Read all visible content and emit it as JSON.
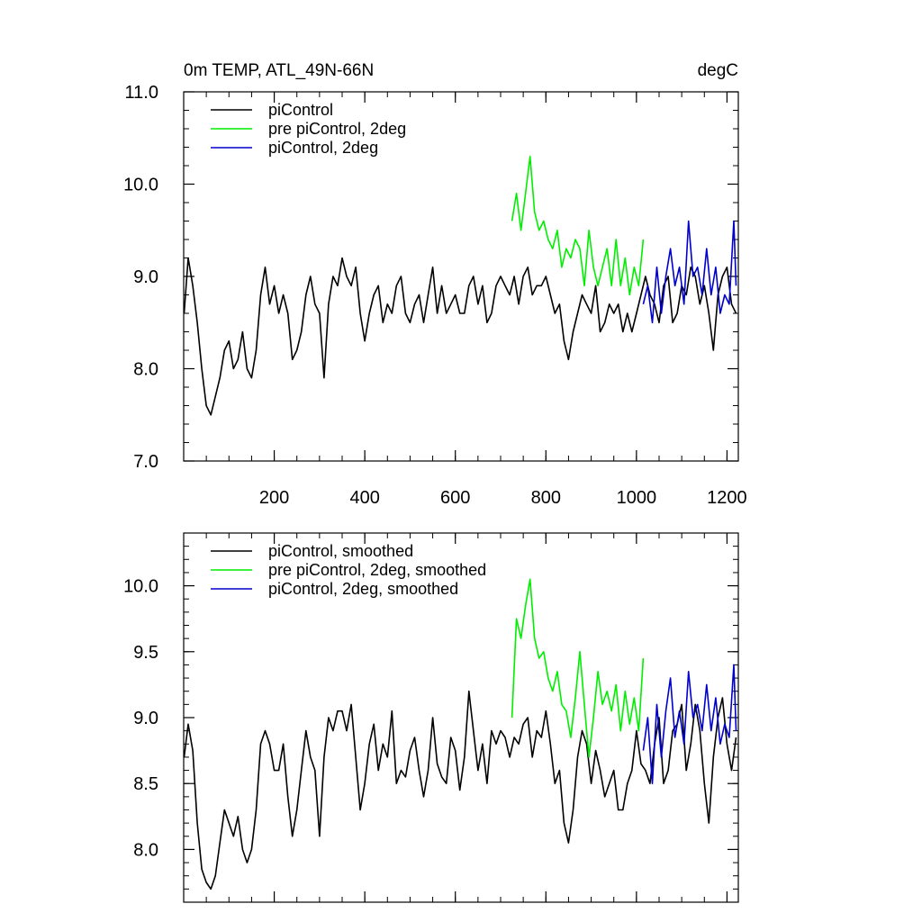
{
  "figure": {
    "title_left": "0m TEMP, ATL_49N-66N",
    "title_right": "degC"
  },
  "chart_data": [
    {
      "type": "line",
      "xlim": [
        0,
        1225
      ],
      "ylim": [
        7.0,
        11.0
      ],
      "x_ticks": [
        200,
        400,
        600,
        800,
        1000,
        1200
      ],
      "x_tick_labels": [
        "200",
        "400",
        "600",
        "800",
        "1000",
        "1200"
      ],
      "y_ticks": [
        7.0,
        8.0,
        9.0,
        10.0,
        11.0
      ],
      "y_tick_labels": [
        "7.0",
        "8.0",
        "9.0",
        "10.0",
        "11.0"
      ],
      "legend_position": "top-left",
      "grid": false,
      "series": [
        {
          "name": "piControl",
          "color": "#000000",
          "x": [
            1,
            10,
            20,
            30,
            40,
            50,
            60,
            70,
            80,
            90,
            100,
            110,
            120,
            130,
            140,
            150,
            160,
            170,
            180,
            190,
            200,
            210,
            220,
            230,
            240,
            250,
            260,
            270,
            280,
            290,
            300,
            310,
            320,
            330,
            340,
            350,
            360,
            370,
            380,
            390,
            400,
            410,
            420,
            430,
            440,
            450,
            460,
            470,
            480,
            490,
            500,
            510,
            520,
            530,
            540,
            550,
            560,
            570,
            580,
            590,
            600,
            610,
            620,
            630,
            640,
            650,
            660,
            670,
            680,
            690,
            700,
            710,
            720,
            730,
            740,
            750,
            760,
            770,
            780,
            790,
            800,
            810,
            820,
            830,
            840,
            850,
            860,
            870,
            880,
            890,
            900,
            910,
            920,
            930,
            940,
            950,
            960,
            970,
            980,
            990,
            1000,
            1010,
            1020,
            1030,
            1040,
            1050,
            1060,
            1070,
            1080,
            1090,
            1100,
            1110,
            1120,
            1130,
            1140,
            1150,
            1160,
            1170,
            1180,
            1190,
            1200,
            1210,
            1220
          ],
          "values": [
            8.6,
            9.2,
            8.9,
            8.5,
            8.0,
            7.6,
            7.5,
            7.7,
            7.9,
            8.2,
            8.3,
            8.0,
            8.1,
            8.4,
            8.0,
            7.9,
            8.2,
            8.8,
            9.1,
            8.7,
            8.9,
            8.6,
            8.8,
            8.6,
            8.1,
            8.2,
            8.4,
            8.8,
            9.0,
            8.7,
            8.6,
            7.9,
            8.7,
            9.0,
            8.9,
            9.2,
            9.0,
            8.9,
            9.1,
            8.6,
            8.3,
            8.6,
            8.8,
            8.9,
            8.5,
            8.7,
            8.6,
            8.9,
            9.0,
            8.6,
            8.5,
            8.7,
            8.8,
            8.5,
            8.8,
            9.1,
            8.6,
            8.9,
            8.6,
            8.7,
            8.8,
            8.6,
            8.6,
            8.9,
            9.0,
            8.7,
            8.9,
            8.5,
            8.6,
            8.9,
            9.0,
            8.9,
            8.8,
            9.0,
            8.7,
            9.0,
            9.1,
            8.8,
            8.9,
            8.9,
            9.0,
            8.8,
            8.6,
            8.7,
            8.3,
            8.1,
            8.4,
            8.6,
            8.8,
            8.7,
            8.6,
            8.9,
            8.4,
            8.5,
            8.7,
            8.6,
            8.7,
            8.4,
            8.6,
            8.4,
            8.6,
            8.8,
            9.0,
            8.8,
            8.7,
            8.5,
            8.9,
            9.0,
            8.5,
            8.6,
            8.9,
            8.8,
            9.1,
            9.0,
            8.7,
            8.9,
            8.6,
            8.2,
            8.8,
            9.0,
            9.1,
            8.7,
            8.6
          ]
        },
        {
          "name": "pre piControl, 2deg",
          "color": "#00ee00",
          "x": [
            725,
            735,
            745,
            755,
            765,
            775,
            785,
            795,
            805,
            815,
            825,
            835,
            845,
            855,
            865,
            875,
            885,
            895,
            905,
            915,
            925,
            935,
            945,
            955,
            965,
            975,
            985,
            995,
            1005,
            1015
          ],
          "values": [
            9.6,
            9.9,
            9.5,
            9.9,
            10.3,
            9.7,
            9.5,
            9.6,
            9.4,
            9.3,
            9.5,
            9.1,
            9.3,
            9.2,
            9.4,
            9.3,
            8.9,
            9.5,
            9.1,
            8.9,
            9.1,
            9.3,
            8.9,
            9.4,
            8.9,
            9.2,
            8.8,
            9.1,
            8.9,
            9.4
          ]
        },
        {
          "name": "piControl, 2deg",
          "color": "#0000cc",
          "x": [
            1015,
            1025,
            1035,
            1045,
            1055,
            1065,
            1075,
            1085,
            1095,
            1105,
            1115,
            1125,
            1135,
            1145,
            1155,
            1165,
            1175,
            1185,
            1195,
            1205,
            1215,
            1220
          ],
          "values": [
            8.7,
            8.9,
            8.5,
            9.1,
            8.6,
            9.0,
            9.3,
            8.9,
            9.1,
            8.7,
            9.6,
            9.0,
            9.1,
            8.8,
            9.3,
            8.8,
            9.1,
            8.6,
            8.8,
            8.7,
            9.6,
            8.9
          ]
        }
      ]
    },
    {
      "type": "line",
      "xlim": [
        0,
        1225
      ],
      "ylim": [
        7.6,
        10.4
      ],
      "x_ticks": [
        200,
        400,
        600,
        800,
        1000,
        1200
      ],
      "y_ticks": [
        8.0,
        8.5,
        9.0,
        9.5,
        10.0
      ],
      "y_tick_labels": [
        "8.0",
        "8.5",
        "9.0",
        "9.5",
        "10.0"
      ],
      "legend_position": "top-left",
      "grid": false,
      "series": [
        {
          "name": "piControl, smoothed",
          "color": "#000000",
          "x": [
            1,
            10,
            20,
            30,
            40,
            50,
            60,
            70,
            80,
            90,
            100,
            110,
            120,
            130,
            140,
            150,
            160,
            170,
            180,
            190,
            200,
            210,
            220,
            230,
            240,
            250,
            260,
            270,
            280,
            290,
            300,
            310,
            320,
            330,
            340,
            350,
            360,
            370,
            380,
            390,
            400,
            410,
            420,
            430,
            440,
            450,
            460,
            470,
            480,
            490,
            500,
            510,
            520,
            530,
            540,
            550,
            560,
            570,
            580,
            590,
            600,
            610,
            620,
            630,
            640,
            650,
            660,
            670,
            680,
            690,
            700,
            710,
            720,
            730,
            740,
            750,
            760,
            770,
            780,
            790,
            800,
            810,
            820,
            830,
            840,
            850,
            860,
            870,
            880,
            890,
            900,
            910,
            920,
            930,
            940,
            950,
            960,
            970,
            980,
            990,
            1000,
            1010,
            1020,
            1030,
            1040,
            1050,
            1060,
            1070,
            1080,
            1090,
            1100,
            1110,
            1120,
            1130,
            1140,
            1150,
            1160,
            1170,
            1180,
            1190,
            1200,
            1210,
            1220
          ],
          "values": [
            8.7,
            8.95,
            8.75,
            8.2,
            7.85,
            7.75,
            7.7,
            7.8,
            8.05,
            8.3,
            8.2,
            8.1,
            8.25,
            8.0,
            7.9,
            8.0,
            8.3,
            8.8,
            8.9,
            8.8,
            8.6,
            8.6,
            8.8,
            8.4,
            8.1,
            8.3,
            8.6,
            8.9,
            8.7,
            8.6,
            8.1,
            8.7,
            9.0,
            8.9,
            9.05,
            9.05,
            8.9,
            9.1,
            8.7,
            8.3,
            8.5,
            8.8,
            8.95,
            8.6,
            8.8,
            8.7,
            9.05,
            8.5,
            8.6,
            8.55,
            8.75,
            8.85,
            8.6,
            8.4,
            8.6,
            9.0,
            8.65,
            8.55,
            8.5,
            8.85,
            8.75,
            8.45,
            8.7,
            9.2,
            8.9,
            8.6,
            8.8,
            8.5,
            8.9,
            8.8,
            8.9,
            8.85,
            8.7,
            8.85,
            8.8,
            8.95,
            9.0,
            8.7,
            8.9,
            8.85,
            9.05,
            8.8,
            8.5,
            8.6,
            8.2,
            8.05,
            8.3,
            8.7,
            8.9,
            8.8,
            8.5,
            8.75,
            8.6,
            8.4,
            8.5,
            8.6,
            8.3,
            8.3,
            8.5,
            8.6,
            8.9,
            8.65,
            8.6,
            8.5,
            8.8,
            9.0,
            8.5,
            8.6,
            8.9,
            8.95,
            9.1,
            8.6,
            8.8,
            9.1,
            8.9,
            8.5,
            8.2,
            8.7,
            9.0,
            9.15,
            8.8,
            8.6,
            8.85
          ]
        },
        {
          "name": "pre piControl, 2deg, smoothed",
          "color": "#00ee00",
          "x": [
            725,
            735,
            745,
            755,
            765,
            775,
            785,
            795,
            805,
            815,
            825,
            835,
            845,
            855,
            865,
            875,
            885,
            895,
            905,
            915,
            925,
            935,
            945,
            955,
            965,
            975,
            985,
            995,
            1005,
            1015
          ],
          "values": [
            9.0,
            9.75,
            9.6,
            9.85,
            10.05,
            9.6,
            9.45,
            9.5,
            9.3,
            9.2,
            9.35,
            9.1,
            9.05,
            8.85,
            9.15,
            9.5,
            9.1,
            8.7,
            9.0,
            9.35,
            9.1,
            9.2,
            9.05,
            9.25,
            8.9,
            9.2,
            8.95,
            9.15,
            8.9,
            9.45
          ]
        },
        {
          "name": "piControl, 2deg, smoothed",
          "color": "#0000cc",
          "x": [
            1015,
            1025,
            1035,
            1045,
            1055,
            1065,
            1075,
            1085,
            1095,
            1105,
            1115,
            1125,
            1135,
            1145,
            1155,
            1165,
            1175,
            1185,
            1195,
            1205,
            1215,
            1220
          ],
          "values": [
            8.75,
            9.0,
            8.5,
            9.1,
            8.7,
            9.05,
            9.3,
            8.85,
            9.05,
            8.8,
            9.35,
            9.0,
            9.1,
            8.9,
            9.25,
            8.9,
            9.15,
            8.8,
            8.95,
            8.85,
            9.4,
            8.9
          ]
        }
      ]
    }
  ]
}
